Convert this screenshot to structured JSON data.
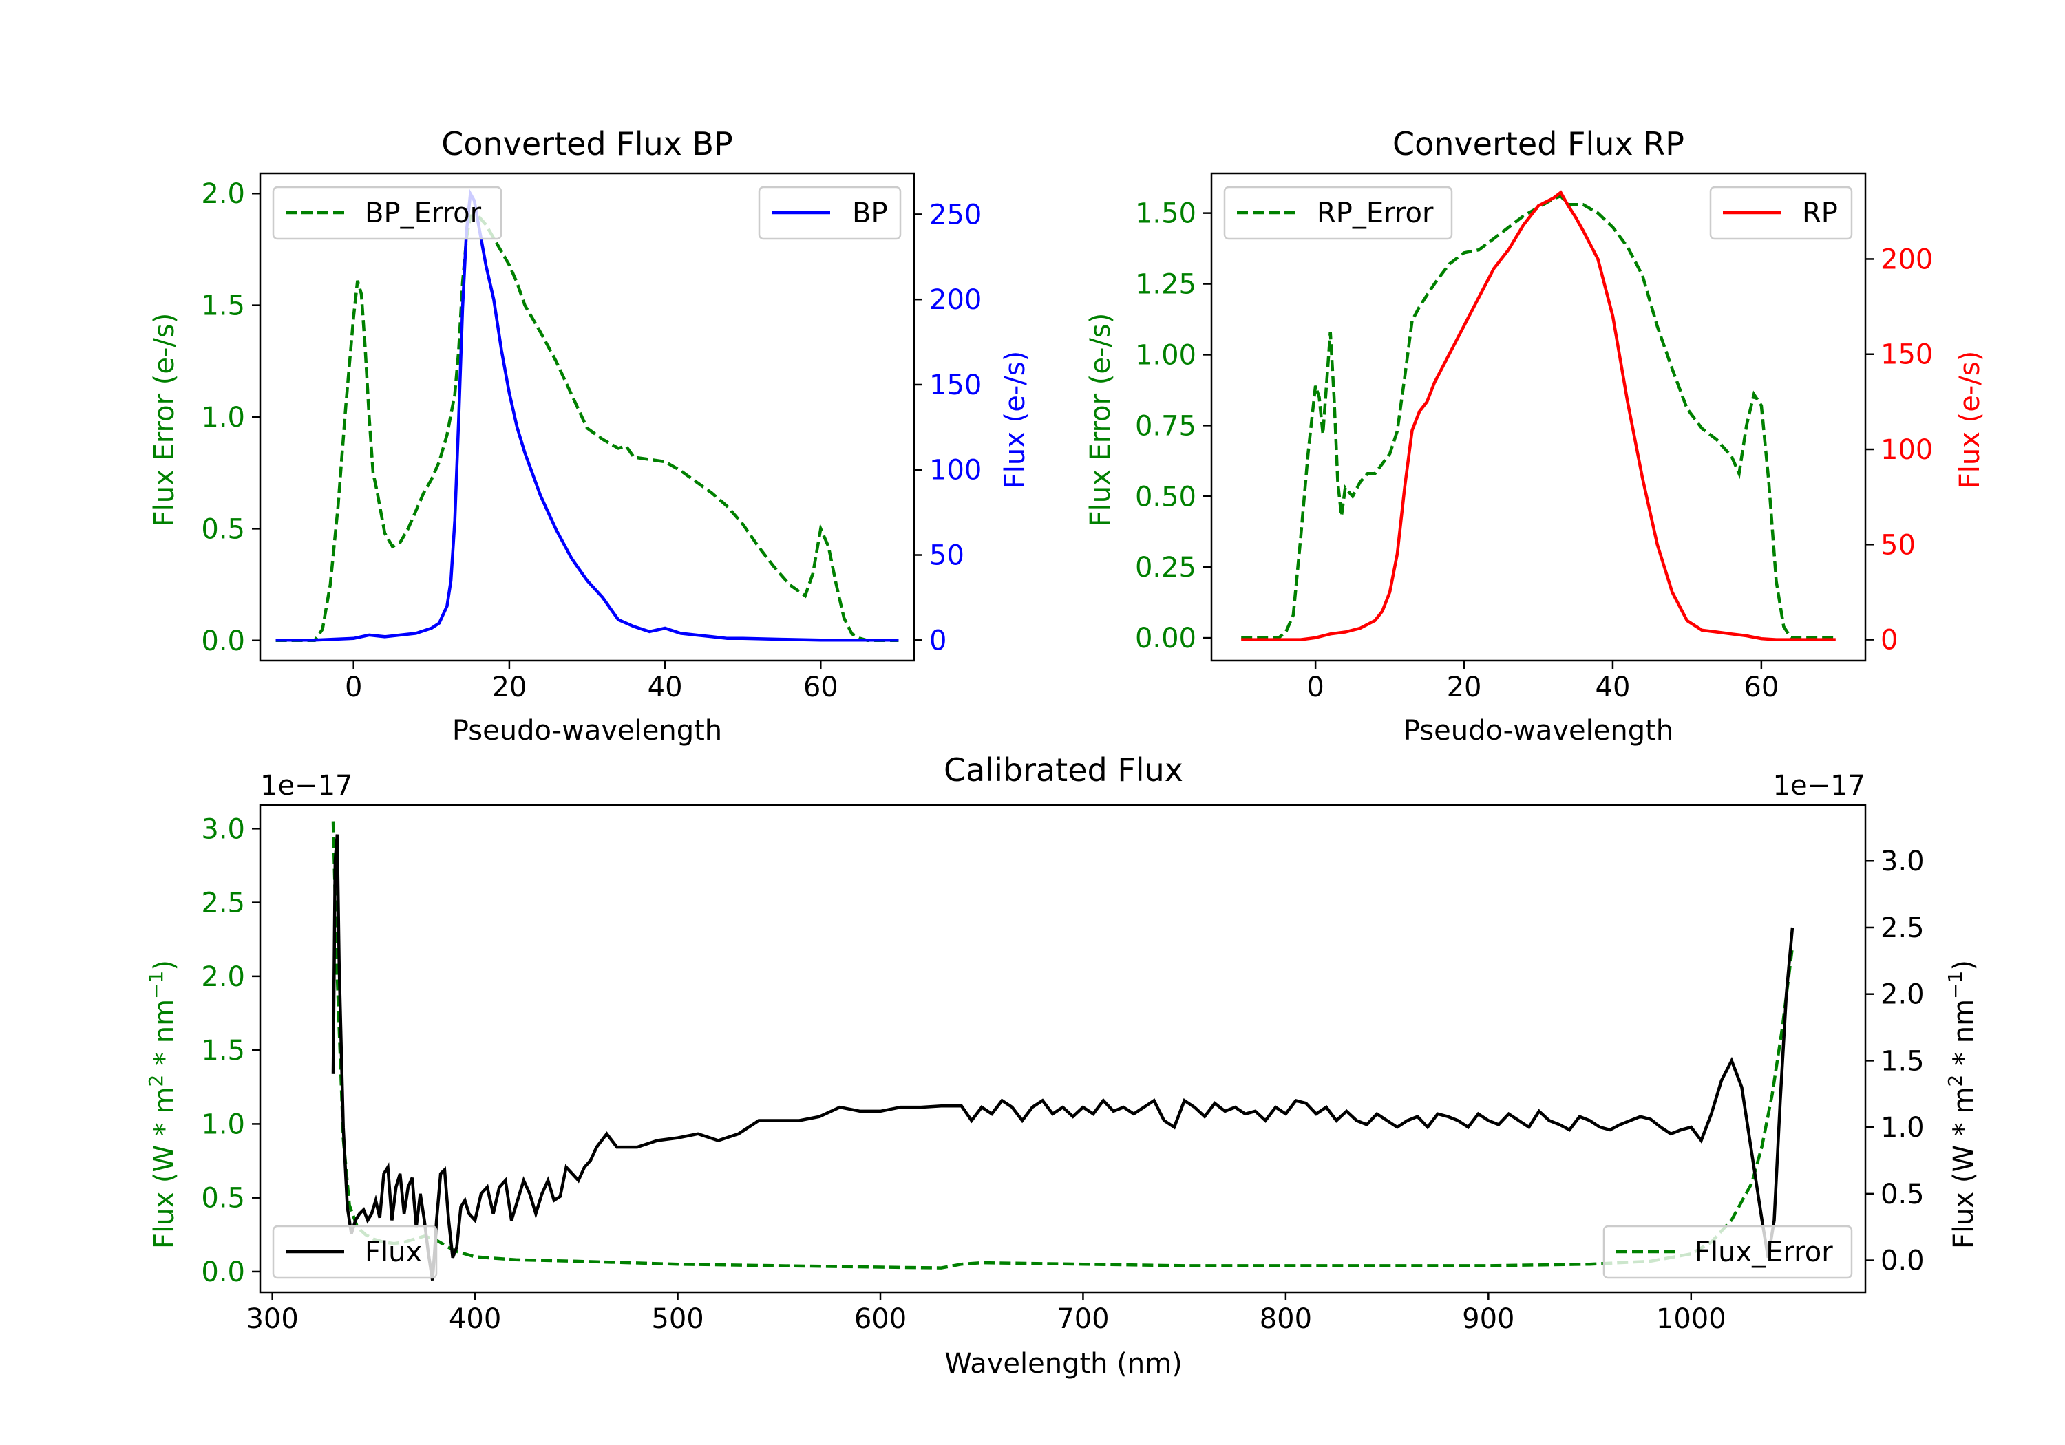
{
  "colors": {
    "green": "#008000",
    "blue": "#0000ff",
    "red": "#ff0000",
    "black": "#000000",
    "legend_border": "#cccccc"
  },
  "chart_data": [
    {
      "id": "bp",
      "type": "line",
      "title": "Converted Flux BP",
      "xlabel": "Pseudo-wavelength",
      "ylabel_left": "Flux Error (e-/s)",
      "ylabel_right": "Flux (e-/s)",
      "xlim": [
        -12,
        72
      ],
      "ylim_left": [
        -0.09,
        2.09
      ],
      "ylim_right": [
        -12,
        274
      ],
      "xticks": [
        0,
        20,
        40,
        60
      ],
      "yticks_left": [
        0.0,
        0.5,
        1.0,
        1.5,
        2.0
      ],
      "yticks_right": [
        0,
        50,
        100,
        150,
        200,
        250
      ],
      "legend_left": {
        "label": "BP_Error",
        "position": "upper left"
      },
      "legend_right": {
        "label": "BP",
        "position": "upper right"
      },
      "series": [
        {
          "name": "BP_Error",
          "axis": "left",
          "color": "#008000",
          "style": "dashed",
          "x": [
            -10,
            -5,
            -4,
            -3,
            -2,
            -1,
            0,
            0.5,
            1,
            1.5,
            2,
            2.5,
            3,
            4,
            5,
            6,
            7,
            8,
            9,
            10,
            11,
            12,
            13,
            13.5,
            14,
            14.5,
            15,
            16,
            17,
            18,
            19,
            20,
            21,
            22,
            24,
            26,
            28,
            30,
            32,
            34,
            35,
            36,
            38,
            40,
            42,
            44,
            46,
            48,
            50,
            52,
            54,
            56,
            58,
            59,
            60,
            61,
            62,
            63,
            64,
            65,
            66,
            67,
            68,
            70
          ],
          "y": [
            0.0,
            0.0,
            0.05,
            0.25,
            0.6,
            1.05,
            1.45,
            1.61,
            1.55,
            1.3,
            1.0,
            0.75,
            0.67,
            0.48,
            0.42,
            0.44,
            0.5,
            0.58,
            0.66,
            0.72,
            0.8,
            0.92,
            1.1,
            1.3,
            1.6,
            1.8,
            1.9,
            1.9,
            1.86,
            1.8,
            1.74,
            1.68,
            1.6,
            1.5,
            1.38,
            1.25,
            1.1,
            0.95,
            0.9,
            0.86,
            0.87,
            0.82,
            0.81,
            0.8,
            0.76,
            0.71,
            0.66,
            0.6,
            0.52,
            0.42,
            0.33,
            0.25,
            0.2,
            0.3,
            0.5,
            0.42,
            0.25,
            0.1,
            0.03,
            0.01,
            0.0,
            0.0,
            0.0,
            0.0
          ]
        },
        {
          "name": "BP",
          "axis": "right",
          "color": "#0000ff",
          "style": "solid",
          "x": [
            -10,
            -5,
            0,
            2,
            4,
            6,
            8,
            10,
            11,
            12,
            12.5,
            13,
            13.5,
            14,
            14.5,
            15,
            15.5,
            16,
            17,
            18,
            19,
            20,
            21,
            22,
            24,
            26,
            28,
            30,
            32,
            34,
            36,
            38,
            40,
            42,
            44,
            46,
            48,
            50,
            55,
            60,
            65,
            70
          ],
          "y": [
            0,
            0,
            1,
            3,
            2,
            3,
            4,
            7,
            10,
            20,
            35,
            70,
            130,
            195,
            240,
            262,
            258,
            245,
            220,
            200,
            170,
            145,
            125,
            110,
            85,
            65,
            48,
            35,
            25,
            12,
            8,
            5,
            7,
            4,
            3,
            2,
            1,
            1,
            0.5,
            0,
            0,
            0
          ]
        }
      ]
    },
    {
      "id": "rp",
      "type": "line",
      "title": "Converted Flux RP",
      "xlabel": "Pseudo-wavelength",
      "ylabel_left": "Flux Error (e-/s)",
      "ylabel_right": "Flux (e-/s)",
      "xlim": [
        -14,
        74
      ],
      "ylim_left": [
        -0.08,
        1.64
      ],
      "ylim_right": [
        -11,
        245
      ],
      "xticks": [
        0,
        20,
        40,
        60
      ],
      "yticks_left": [
        0.0,
        0.25,
        0.5,
        0.75,
        1.0,
        1.25,
        1.5
      ],
      "yticks_right": [
        0,
        50,
        100,
        150,
        200
      ],
      "legend_left": {
        "label": "RP_Error",
        "position": "upper left"
      },
      "legend_right": {
        "label": "RP",
        "position": "upper right"
      },
      "series": [
        {
          "name": "RP_Error",
          "axis": "right_none",
          "color": "#008000",
          "style": "dashed",
          "x": [
            -10,
            -5,
            -4,
            -3,
            -2,
            -1,
            0,
            0.5,
            1,
            1.5,
            2,
            2.5,
            3,
            3.5,
            4,
            5,
            6,
            7,
            8,
            10,
            11,
            12,
            13,
            14,
            16,
            18,
            20,
            22,
            24,
            26,
            28,
            30,
            32,
            33,
            34,
            36,
            38,
            40,
            42,
            44,
            46,
            48,
            50,
            52,
            54,
            56,
            57,
            58,
            59,
            60,
            61,
            62,
            63,
            64,
            66,
            68,
            70
          ],
          "y": [
            0.0,
            0.0,
            0.02,
            0.08,
            0.35,
            0.65,
            0.89,
            0.85,
            0.72,
            0.9,
            1.08,
            0.85,
            0.55,
            0.43,
            0.53,
            0.5,
            0.55,
            0.58,
            0.58,
            0.65,
            0.73,
            0.92,
            1.12,
            1.17,
            1.25,
            1.32,
            1.36,
            1.37,
            1.41,
            1.45,
            1.49,
            1.52,
            1.55,
            1.56,
            1.53,
            1.53,
            1.5,
            1.45,
            1.38,
            1.28,
            1.1,
            0.95,
            0.81,
            0.74,
            0.7,
            0.64,
            0.58,
            0.75,
            0.86,
            0.82,
            0.55,
            0.2,
            0.04,
            0.0,
            0.0,
            0.0,
            0.0
          ]
        },
        {
          "name": "RP",
          "axis": "right",
          "color": "#ff0000",
          "style": "solid",
          "x": [
            -10,
            -5,
            -2,
            0,
            2,
            4,
            6,
            8,
            9,
            10,
            11,
            12,
            13,
            14,
            15,
            16,
            18,
            20,
            22,
            24,
            26,
            28,
            30,
            31,
            32,
            33,
            34,
            35,
            36,
            38,
            40,
            42,
            44,
            46,
            48,
            50,
            52,
            54,
            56,
            58,
            60,
            62,
            64,
            66,
            68,
            70
          ],
          "y": [
            0,
            0,
            0,
            1,
            3,
            4,
            6,
            10,
            15,
            25,
            45,
            80,
            110,
            120,
            125,
            135,
            150,
            165,
            180,
            195,
            205,
            218,
            228,
            230,
            232,
            235,
            228,
            222,
            215,
            200,
            170,
            125,
            85,
            50,
            25,
            10,
            5,
            4,
            3,
            2,
            0.5,
            0,
            0,
            0,
            0,
            0
          ]
        }
      ]
    },
    {
      "id": "calibrated",
      "type": "line",
      "title": "Calibrated Flux",
      "xlabel": "Wavelength (nm)",
      "ylabel_left": "Flux (W * m$^2$ * nm$^{-1}$)",
      "ylabel_left_parts": [
        "Flux (W * m",
        "2",
        " * nm",
        "−1",
        ")"
      ],
      "ylabel_right_parts": [
        "Flux (W * m",
        "2",
        " * nm",
        "−1",
        ")"
      ],
      "offset_left": "1e−17",
      "offset_right": "1e−17",
      "xlim": [
        294,
        1086
      ],
      "ylim_left": [
        -0.14,
        3.16
      ],
      "ylim_right": [
        -0.24,
        3.42
      ],
      "xticks": [
        300,
        400,
        500,
        600,
        700,
        800,
        900,
        1000
      ],
      "yticks_left": [
        0.0,
        0.5,
        1.0,
        1.5,
        2.0,
        2.5,
        3.0
      ],
      "yticks_right": [
        0.0,
        0.5,
        1.0,
        1.5,
        2.0,
        2.5,
        3.0
      ],
      "legend_left": {
        "label": "Flux",
        "position": "lower left"
      },
      "legend_right": {
        "label": "Flux_Error",
        "position": "lower right"
      },
      "series": [
        {
          "name": "Flux_Error",
          "axis": "left",
          "color": "#008000",
          "style": "dashed",
          "x": [
            330,
            332,
            335,
            338,
            342,
            346,
            350,
            355,
            360,
            365,
            370,
            375,
            380,
            390,
            400,
            420,
            450,
            500,
            550,
            600,
            630,
            640,
            650,
            700,
            750,
            800,
            850,
            900,
            950,
            980,
            1000,
            1010,
            1020,
            1030,
            1035,
            1040,
            1045,
            1050
          ],
          "y": [
            3.05,
            2.0,
            0.9,
            0.45,
            0.3,
            0.25,
            0.22,
            0.2,
            0.19,
            0.2,
            0.22,
            0.24,
            0.22,
            0.14,
            0.1,
            0.08,
            0.07,
            0.05,
            0.04,
            0.03,
            0.025,
            0.05,
            0.06,
            0.05,
            0.04,
            0.04,
            0.04,
            0.04,
            0.05,
            0.07,
            0.12,
            0.2,
            0.35,
            0.6,
            0.85,
            1.2,
            1.65,
            2.2
          ]
        },
        {
          "name": "Flux",
          "axis": "right",
          "color": "#000000",
          "style": "solid",
          "x": [
            330,
            331,
            332,
            333,
            335,
            337,
            339,
            341,
            343,
            345,
            347,
            349,
            351,
            353,
            355,
            357,
            359,
            361,
            363,
            365,
            367,
            369,
            371,
            373,
            375,
            377,
            379,
            380,
            381,
            383,
            385,
            387,
            389,
            391,
            393,
            395,
            397,
            400,
            403,
            406,
            409,
            412,
            415,
            418,
            421,
            424,
            427,
            430,
            433,
            436,
            439,
            442,
            445,
            448,
            451,
            454,
            457,
            460,
            465,
            470,
            475,
            480,
            490,
            500,
            510,
            520,
            530,
            540,
            550,
            560,
            570,
            580,
            590,
            600,
            610,
            620,
            630,
            640,
            645,
            650,
            655,
            660,
            665,
            670,
            675,
            680,
            685,
            690,
            695,
            700,
            705,
            710,
            715,
            720,
            725,
            730,
            735,
            740,
            745,
            750,
            755,
            760,
            765,
            770,
            775,
            780,
            785,
            790,
            795,
            800,
            805,
            810,
            815,
            820,
            825,
            830,
            835,
            840,
            845,
            850,
            855,
            860,
            865,
            870,
            875,
            880,
            885,
            890,
            895,
            900,
            905,
            910,
            915,
            920,
            925,
            930,
            935,
            940,
            945,
            950,
            955,
            960,
            965,
            970,
            975,
            980,
            985,
            990,
            995,
            1000,
            1005,
            1010,
            1015,
            1020,
            1025,
            1030,
            1035,
            1038,
            1041,
            1044,
            1047,
            1050
          ],
          "y": [
            1.4,
            3.0,
            3.2,
            2.2,
            1.0,
            0.4,
            0.2,
            0.3,
            0.35,
            0.38,
            0.3,
            0.35,
            0.45,
            0.32,
            0.65,
            0.7,
            0.3,
            0.55,
            0.65,
            0.35,
            0.55,
            0.62,
            0.25,
            0.5,
            0.3,
            0.05,
            -0.15,
            0.05,
            0.3,
            0.65,
            0.68,
            0.3,
            0.02,
            0.1,
            0.4,
            0.45,
            0.35,
            0.3,
            0.5,
            0.55,
            0.35,
            0.55,
            0.6,
            0.3,
            0.45,
            0.6,
            0.5,
            0.35,
            0.5,
            0.6,
            0.45,
            0.48,
            0.7,
            0.65,
            0.6,
            0.7,
            0.75,
            0.85,
            0.95,
            0.85,
            0.85,
            0.85,
            0.9,
            0.92,
            0.95,
            0.9,
            0.95,
            1.05,
            1.05,
            1.05,
            1.08,
            1.15,
            1.12,
            1.12,
            1.15,
            1.15,
            1.16,
            1.16,
            1.05,
            1.15,
            1.1,
            1.2,
            1.15,
            1.05,
            1.15,
            1.2,
            1.1,
            1.15,
            1.08,
            1.15,
            1.1,
            1.2,
            1.12,
            1.15,
            1.1,
            1.15,
            1.2,
            1.05,
            1.0,
            1.2,
            1.15,
            1.08,
            1.18,
            1.12,
            1.15,
            1.1,
            1.12,
            1.05,
            1.15,
            1.1,
            1.2,
            1.18,
            1.1,
            1.15,
            1.05,
            1.12,
            1.05,
            1.02,
            1.1,
            1.05,
            1.0,
            1.05,
            1.08,
            1.0,
            1.1,
            1.08,
            1.05,
            1.0,
            1.1,
            1.05,
            1.02,
            1.1,
            1.05,
            1.0,
            1.12,
            1.05,
            1.02,
            0.98,
            1.08,
            1.05,
            1.0,
            0.98,
            1.02,
            1.05,
            1.08,
            1.06,
            1.0,
            0.95,
            0.98,
            1.0,
            0.9,
            1.1,
            1.35,
            1.5,
            1.3,
            0.8,
            0.3,
            0.02,
            0.3,
            1.2,
            2.0,
            2.5
          ]
        }
      ]
    }
  ]
}
